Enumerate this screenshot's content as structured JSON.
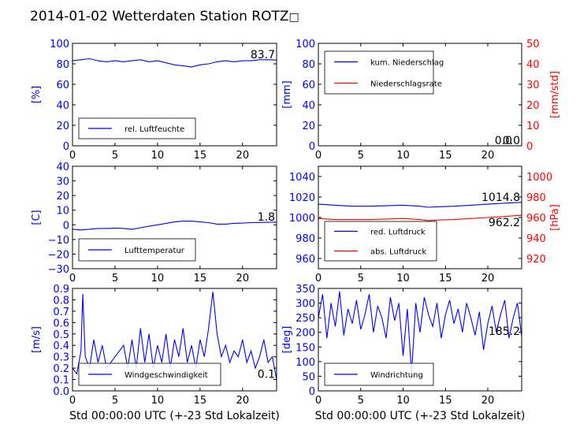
{
  "title": "2014-01-02 Wetterdaten Station ROTZ",
  "title_suffix": "□",
  "colors": {
    "primary": "#0000ff",
    "secondary": "#ff0000",
    "axis": "#000000",
    "legend_border": "#000000"
  },
  "chart_data": [
    {
      "id": "humidity",
      "type": "line",
      "xlim": [
        0,
        24
      ],
      "xticks": [
        0,
        5,
        10,
        15,
        20
      ],
      "ylim": [
        0,
        100
      ],
      "yticks": [
        0,
        20,
        40,
        60,
        80,
        100
      ],
      "ylabel": "[%]",
      "last_value_label": "83.7",
      "series": [
        {
          "name": "rel. Luftfeuchte",
          "color": "#0000ff",
          "axis": "left",
          "x": [
            0,
            1,
            2,
            3,
            4,
            5,
            6,
            7,
            8,
            9,
            10,
            11,
            12,
            13,
            14,
            15,
            16,
            17,
            18,
            19,
            20,
            21,
            22,
            23,
            24
          ],
          "y": [
            83,
            84,
            85,
            83,
            82,
            83,
            82,
            83,
            84,
            82,
            83,
            81,
            79,
            78,
            77,
            79,
            80,
            82,
            83,
            82,
            83,
            83,
            84,
            84,
            83.7
          ]
        }
      ],
      "legend_position": "lower-left"
    },
    {
      "id": "precip",
      "type": "line",
      "xlim": [
        0,
        24
      ],
      "xticks": [
        0,
        5,
        10,
        15,
        20
      ],
      "ylim": [
        0,
        100
      ],
      "yticks": [
        0,
        20,
        40,
        60,
        80,
        100
      ],
      "ylabel": "[mm]",
      "y2lim": [
        0,
        50
      ],
      "y2ticks": [
        0,
        10,
        20,
        30,
        40,
        50
      ],
      "y2label": "[mm/std]",
      "value_labels": [
        "0.0",
        "0.0"
      ],
      "series": [
        {
          "name": "kum. Niederschlag",
          "color": "#0000ff",
          "axis": "left",
          "x": [
            0,
            24
          ],
          "y": [
            0,
            0
          ]
        },
        {
          "name": "Niederschlagsrate",
          "color": "#ff0000",
          "axis": "right",
          "x": [
            0,
            24
          ],
          "y": [
            0,
            0
          ]
        }
      ],
      "legend_position": "upper-left"
    },
    {
      "id": "temperature",
      "type": "line",
      "xlim": [
        0,
        24
      ],
      "xticks": [
        0,
        5,
        10,
        15,
        20
      ],
      "ylim": [
        -30,
        40
      ],
      "yticks": [
        -30,
        -20,
        -10,
        0,
        10,
        20,
        30,
        40
      ],
      "ylabel": "[C]",
      "last_value_label": "1.8",
      "series": [
        {
          "name": "Lufttemperatur",
          "color": "#0000ff",
          "axis": "left",
          "x": [
            0,
            1,
            2,
            3,
            4,
            5,
            6,
            7,
            8,
            9,
            10,
            11,
            12,
            13,
            14,
            15,
            16,
            17,
            18,
            19,
            20,
            21,
            22,
            23,
            24
          ],
          "y": [
            -3,
            -3.5,
            -3,
            -2.5,
            -2.5,
            -2.2,
            -2.5,
            -3,
            -2,
            -1,
            0,
            1,
            2,
            2.5,
            2.5,
            2,
            1.5,
            0.5,
            0.5,
            1,
            1.2,
            1.5,
            1.6,
            1.7,
            1.8
          ]
        }
      ],
      "legend_position": "lower-left"
    },
    {
      "id": "pressure",
      "type": "line",
      "xlim": [
        0,
        24
      ],
      "xticks": [
        0,
        5,
        10,
        15,
        20
      ],
      "ylim": [
        950,
        1050
      ],
      "yticks": [
        960,
        980,
        1000,
        1020,
        1040
      ],
      "y2lim": [
        910,
        1010
      ],
      "y2ticks": [
        920,
        940,
        960,
        980,
        1000
      ],
      "y2label": "[hPa]",
      "value_labels": [
        "1014.8",
        "962.2"
      ],
      "series": [
        {
          "name": "red. Luftdruck",
          "color": "#0000ff",
          "axis": "left",
          "x": [
            0,
            2,
            4,
            6,
            8,
            10,
            12,
            13,
            14,
            16,
            18,
            20,
            22,
            24
          ],
          "y": [
            1013,
            1012,
            1011,
            1011,
            1011.5,
            1012,
            1011,
            1010,
            1010.5,
            1011,
            1012,
            1013,
            1014,
            1014.8
          ]
        },
        {
          "name": "abs. Luftdruck",
          "color": "#ff0000",
          "axis": "right",
          "x": [
            0,
            2,
            4,
            6,
            8,
            10,
            12,
            13,
            14,
            16,
            18,
            20,
            22,
            24
          ],
          "y": [
            959,
            958,
            958,
            958,
            958.5,
            959,
            958,
            957,
            957.5,
            958,
            959,
            960,
            961,
            962.2
          ]
        }
      ],
      "legend_position": "lower-left"
    },
    {
      "id": "windspeed",
      "type": "line",
      "xlim": [
        0,
        24
      ],
      "xticks": [
        0,
        5,
        10,
        15,
        20
      ],
      "ylim": [
        0,
        0.9
      ],
      "yticks": [
        0.0,
        0.1,
        0.2,
        0.3,
        0.4,
        0.5,
        0.6,
        0.7,
        0.8,
        0.9
      ],
      "ylabel": "[m/s]",
      "xlabel": "Std 00:00:00 UTC (+-23 Std Lokalzeit)",
      "last_value_label": "0.1",
      "series": [
        {
          "name": "Windgeschwindigkeit",
          "color": "#0000ff",
          "axis": "left",
          "x": [
            0,
            0.5,
            1.0,
            1.2,
            1.5,
            2.0,
            2.5,
            3.0,
            3.5,
            4,
            5,
            6,
            6.5,
            7,
            7.5,
            8,
            8.5,
            9,
            9.5,
            10,
            10.5,
            11,
            11.5,
            12,
            12.5,
            13,
            13.5,
            14,
            14.5,
            15,
            15.5,
            16,
            16.5,
            17,
            17.5,
            18,
            18.5,
            19,
            19.5,
            20,
            20.5,
            21,
            21.5,
            22,
            22.5,
            23,
            23.5,
            24
          ],
          "y": [
            0.2,
            0.15,
            0.35,
            0.85,
            0.3,
            0.2,
            0.45,
            0.25,
            0.4,
            0.2,
            0.3,
            0.4,
            0.2,
            0.45,
            0.2,
            0.55,
            0.25,
            0.5,
            0.2,
            0.4,
            0.25,
            0.5,
            0.2,
            0.45,
            0.3,
            0.55,
            0.25,
            0.4,
            0.2,
            0.45,
            0.3,
            0.55,
            0.87,
            0.5,
            0.3,
            0.4,
            0.25,
            0.35,
            0.3,
            0.45,
            0.25,
            0.35,
            0.2,
            0.3,
            0.45,
            0.25,
            0.3,
            0.1
          ]
        }
      ],
      "legend_position": "lower-left"
    },
    {
      "id": "winddir",
      "type": "line",
      "xlim": [
        0,
        24
      ],
      "xticks": [
        0,
        5,
        10,
        15,
        20
      ],
      "ylim": [
        0,
        350
      ],
      "yticks": [
        0,
        50,
        100,
        150,
        200,
        250,
        300,
        350
      ],
      "ylabel": "[deg]",
      "xlabel": "Std 00:00:00 UTC (+-23 Std Lokalzeit)",
      "last_value_label": "185.2",
      "series": [
        {
          "name": "Windrichtung",
          "color": "#0000ff",
          "axis": "left",
          "x": [
            0,
            0.5,
            1,
            1.5,
            2,
            2.5,
            3,
            3.5,
            4,
            4.5,
            5,
            5.5,
            6,
            6.5,
            7,
            7.5,
            8,
            8.5,
            9,
            9.5,
            10,
            10.5,
            11,
            11.5,
            12,
            12.5,
            13,
            13.5,
            14,
            14.5,
            15,
            15.5,
            16,
            16.5,
            17,
            17.5,
            18,
            18.5,
            19,
            19.5,
            20,
            20.5,
            21,
            21.5,
            22,
            22.5,
            23,
            23.5,
            24
          ],
          "y": [
            250,
            330,
            180,
            300,
            220,
            340,
            190,
            280,
            230,
            310,
            210,
            260,
            330,
            200,
            290,
            250,
            180,
            320,
            240,
            300,
            120,
            280,
            60,
            300,
            200,
            320,
            260,
            220,
            300,
            180,
            260,
            310,
            230,
            280,
            200,
            300,
            250,
            190,
            270,
            140,
            230,
            290,
            200,
            260,
            310,
            180,
            250,
            300,
            185.2
          ]
        }
      ],
      "legend_position": "lower-left"
    }
  ]
}
